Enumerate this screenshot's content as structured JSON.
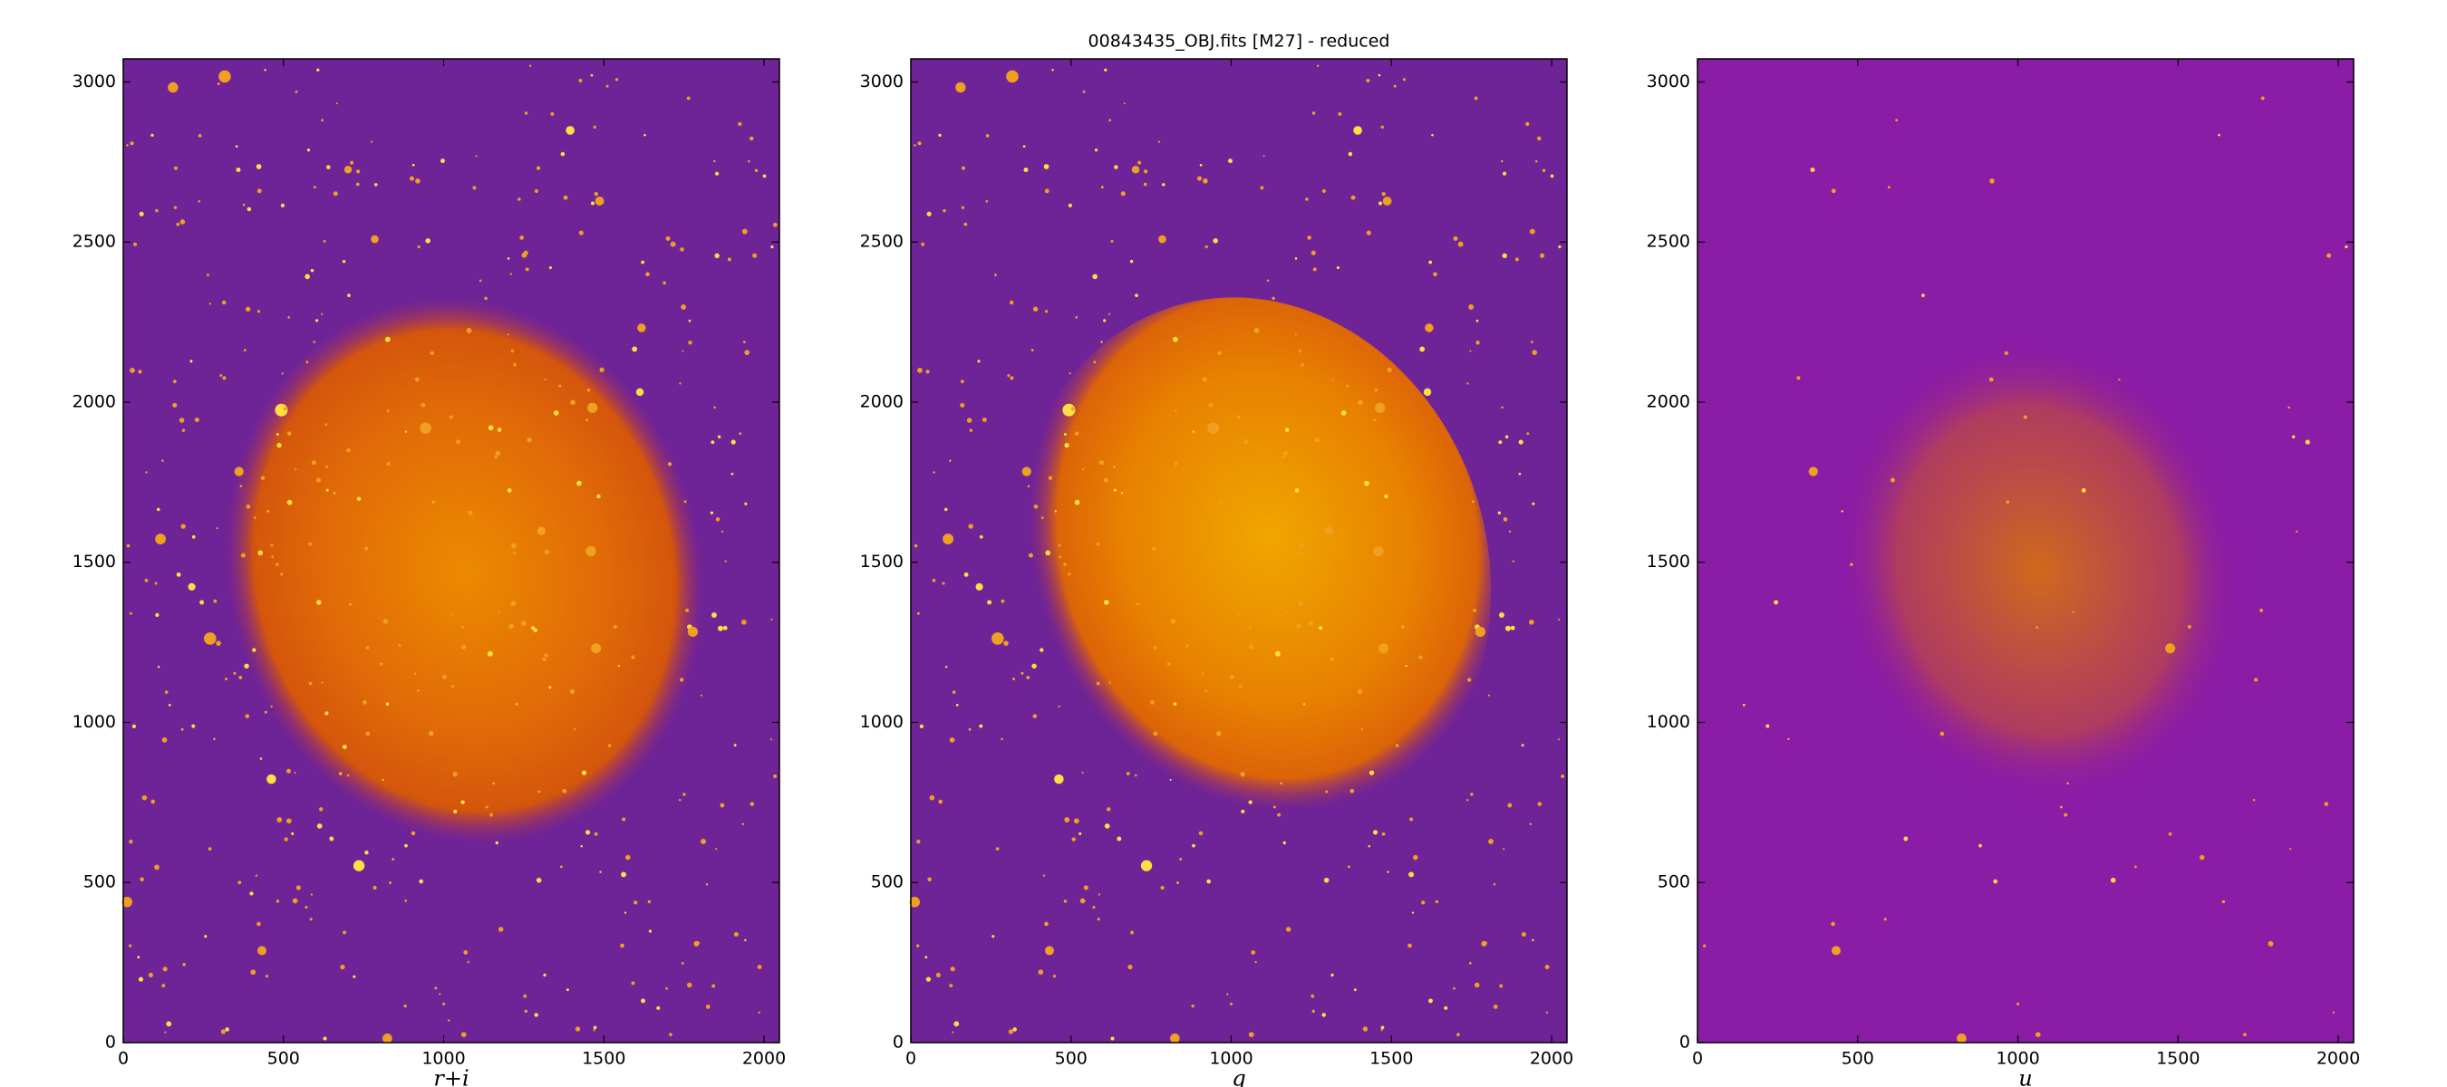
{
  "title": "00843435_OBJ.fits [M27] - reduced",
  "chart_data": [
    {
      "type": "image",
      "xlabel": "r+i",
      "xlim": [
        0,
        2048
      ],
      "ylim": [
        0,
        3072
      ],
      "xticks": [
        0,
        500,
        1000,
        1500,
        2000
      ],
      "yticks": [
        0,
        500,
        1000,
        1500,
        2000,
        2500,
        3000
      ]
    },
    {
      "type": "image",
      "xlabel": "g",
      "xlim": [
        0,
        2048
      ],
      "ylim": [
        0,
        3072
      ],
      "xticks": [
        0,
        500,
        1000,
        1500,
        2000
      ],
      "yticks": [
        0,
        500,
        1000,
        1500,
        2000,
        2500,
        3000
      ]
    },
    {
      "type": "image",
      "xlabel": "u",
      "xlim": [
        0,
        2048
      ],
      "ylim": [
        0,
        3072
      ],
      "xticks": [
        0,
        500,
        1000,
        1500,
        2000
      ],
      "yticks": [
        0,
        500,
        1000,
        1500,
        2000,
        2500,
        3000
      ]
    }
  ]
}
